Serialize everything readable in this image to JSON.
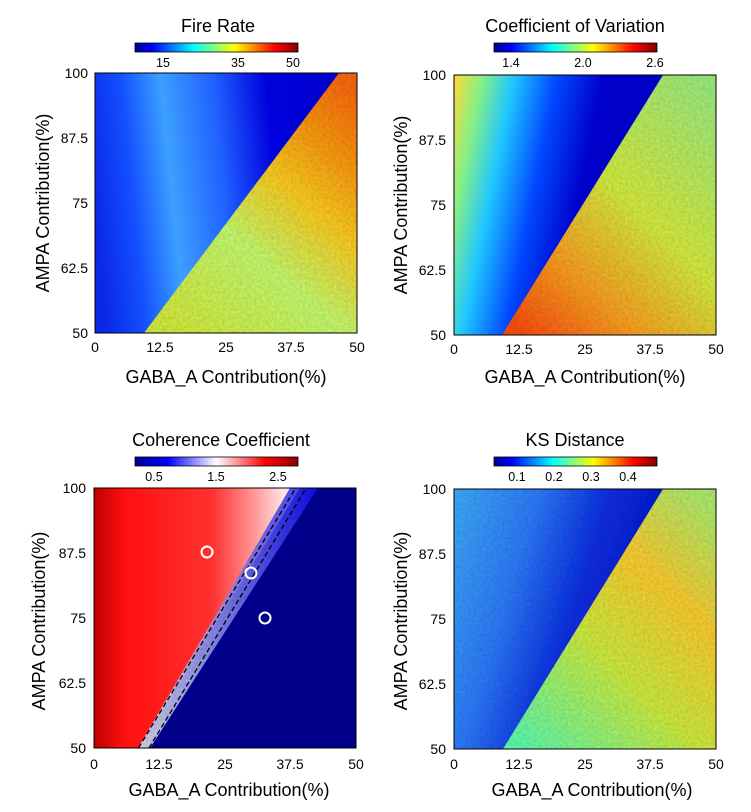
{
  "colormap": "jet",
  "chart_data": [
    {
      "type": "heatmap",
      "title": "Fire Rate",
      "xlabel": "GABA_A Contribution(%)",
      "ylabel": "AMPA Contribution(%)",
      "xlim": [
        0,
        50
      ],
      "ylim": [
        50,
        100
      ],
      "xticks": [
        "0",
        "12.5",
        "25",
        "37.5",
        "50"
      ],
      "yticks": [
        "50",
        "62.5",
        "75",
        "87.5",
        "100"
      ],
      "colorbar": {
        "range": [
          8,
          52
        ],
        "ticks": [
          15,
          35,
          50
        ],
        "tick_labels": [
          "15",
          "35",
          "50"
        ]
      },
      "regions": [
        {
          "label": "left of boundary",
          "value_range": [
            10,
            25
          ]
        },
        {
          "label": "right of boundary",
          "value_range": [
            30,
            48
          ]
        }
      ]
    },
    {
      "type": "heatmap",
      "title": "Coefficient of Variation",
      "xlabel": "GABA_A Contribution(%)",
      "ylabel": "AMPA Contribution(%)",
      "xlim": [
        0,
        50
      ],
      "ylim": [
        50,
        100
      ],
      "xticks": [
        "0",
        "12.5",
        "25",
        "37.5",
        "50"
      ],
      "yticks": [
        "50",
        "62.5",
        "75",
        "87.5",
        "100"
      ],
      "colorbar": {
        "range": [
          1.25,
          2.6
        ],
        "ticks": [
          1.4,
          2.0,
          2.6
        ],
        "tick_labels": [
          "1.4",
          "2.0",
          "2.6"
        ]
      },
      "regions": [
        {
          "label": "left of boundary",
          "value_range": [
            1.3,
            2.3
          ]
        },
        {
          "label": "right of boundary",
          "value_range": [
            1.9,
            2.5
          ]
        }
      ]
    },
    {
      "type": "heatmap",
      "title": "Coherence Coefficient",
      "xlabel": "GABA_A Contribution(%)",
      "ylabel": "AMPA Contribution(%)",
      "xlim": [
        0,
        50
      ],
      "ylim": [
        50,
        100
      ],
      "xticks": [
        "0",
        "12.5",
        "25",
        "37.5",
        "50"
      ],
      "yticks": [
        "50",
        "62.5",
        "75",
        "87.5",
        "100"
      ],
      "colorbar": {
        "range": [
          0.2,
          2.8
        ],
        "ticks": [
          0.5,
          1.5,
          2.5
        ],
        "tick_labels": [
          "0.5",
          "1.5",
          "2.5"
        ]
      },
      "colormap": "bwr",
      "regions": [
        {
          "label": "left of boundary",
          "value_range": [
            1.6,
            2.8
          ]
        },
        {
          "label": "right of boundary",
          "value_range": [
            0.2,
            0.4
          ]
        }
      ],
      "markers": [
        {
          "x": 21.5,
          "y": 87.5
        },
        {
          "x": 30.0,
          "y": 83.5
        },
        {
          "x": 33.0,
          "y": 75.0
        }
      ],
      "dashed_lines": [
        {
          "points": [
            [
              8.5,
              50
            ],
            [
              38.5,
              100
            ]
          ]
        },
        {
          "points": [
            [
              10.5,
              50
            ],
            [
              40.5,
              100
            ]
          ]
        }
      ]
    },
    {
      "type": "heatmap",
      "title": "KS Distance",
      "xlabel": "GABA_A Contribution(%)",
      "ylabel": "AMPA Contribution(%)",
      "xlim": [
        0,
        50
      ],
      "ylim": [
        50,
        100
      ],
      "xticks": [
        "0",
        "12.5",
        "25",
        "37.5",
        "50"
      ],
      "yticks": [
        "50",
        "62.5",
        "75",
        "87.5",
        "100"
      ],
      "colorbar": {
        "range": [
          0.03,
          0.47
        ],
        "ticks": [
          0.1,
          0.2,
          0.3,
          0.4
        ],
        "tick_labels": [
          "0.1",
          "0.2",
          "0.3",
          "0.4"
        ]
      },
      "regions": [
        {
          "label": "left of boundary",
          "value_range": [
            0.06,
            0.2
          ]
        },
        {
          "label": "right of boundary",
          "value_range": [
            0.22,
            0.38
          ]
        }
      ]
    }
  ]
}
